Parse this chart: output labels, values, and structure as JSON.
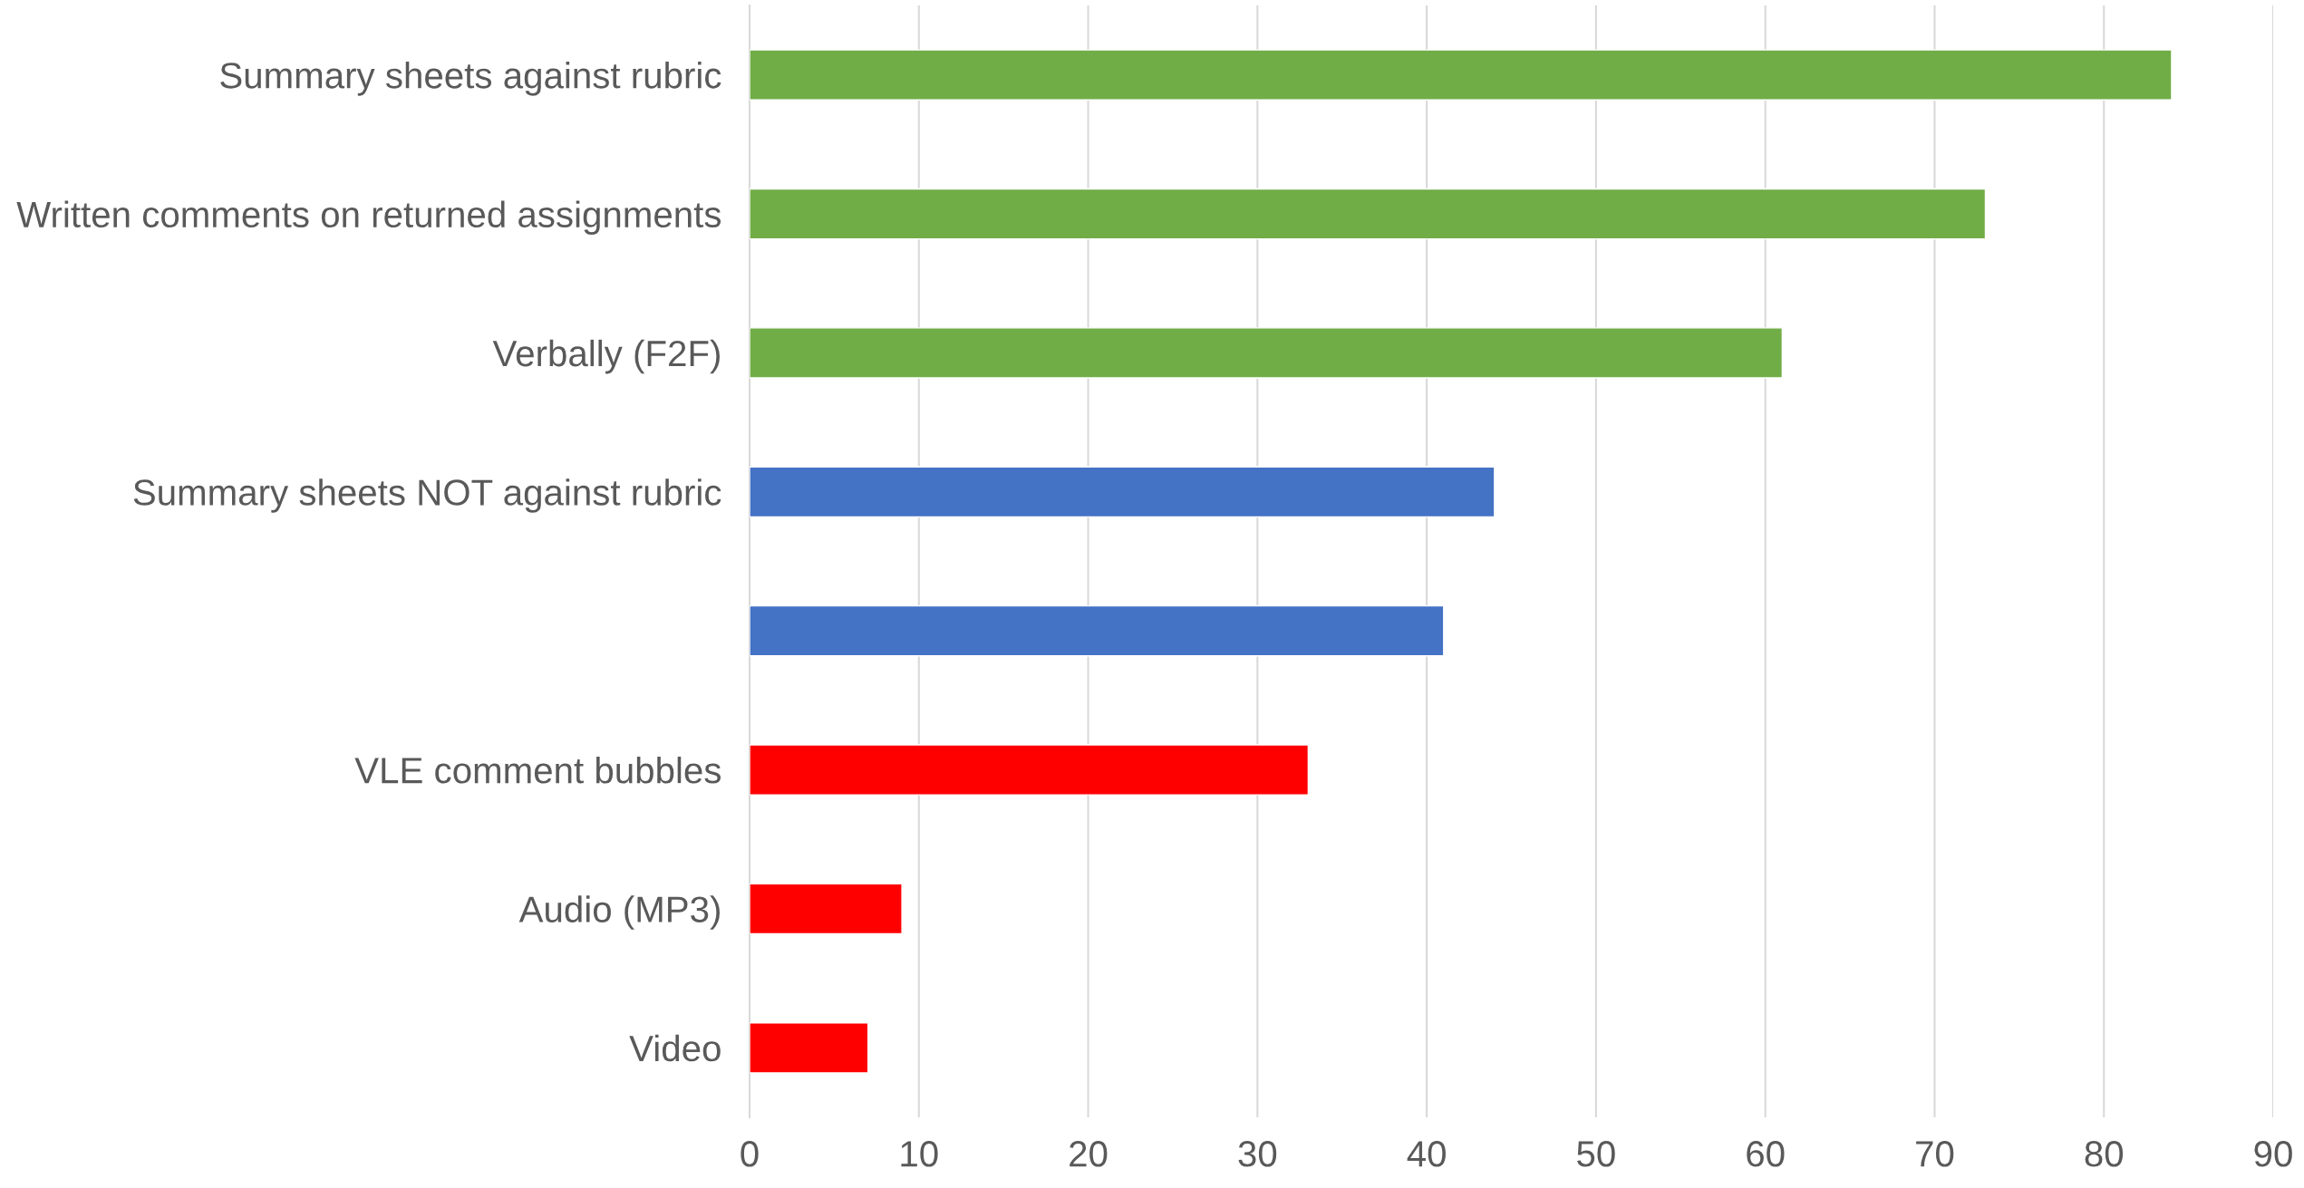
{
  "chart_data": {
    "type": "bar",
    "orientation": "horizontal",
    "categories": [
      "Summary sheets against rubric",
      "Written comments on returned assignments",
      "Verbally (F2F)",
      "Summary sheets NOT against rubric",
      null,
      "VLE comment bubbles",
      "Audio (MP3)",
      "Video"
    ],
    "values": [
      84,
      73,
      61,
      44,
      41,
      33,
      9,
      7
    ],
    "colors": [
      "#70ad47",
      "#70ad47",
      "#70ad47",
      "#4472c4",
      "#4472c4",
      "#ff0000",
      "#ff0000",
      "#ff0000"
    ],
    "xlim": [
      0,
      90
    ],
    "xticks": [
      0,
      10,
      20,
      30,
      40,
      50,
      60,
      70,
      80,
      90
    ],
    "grid": "x"
  }
}
